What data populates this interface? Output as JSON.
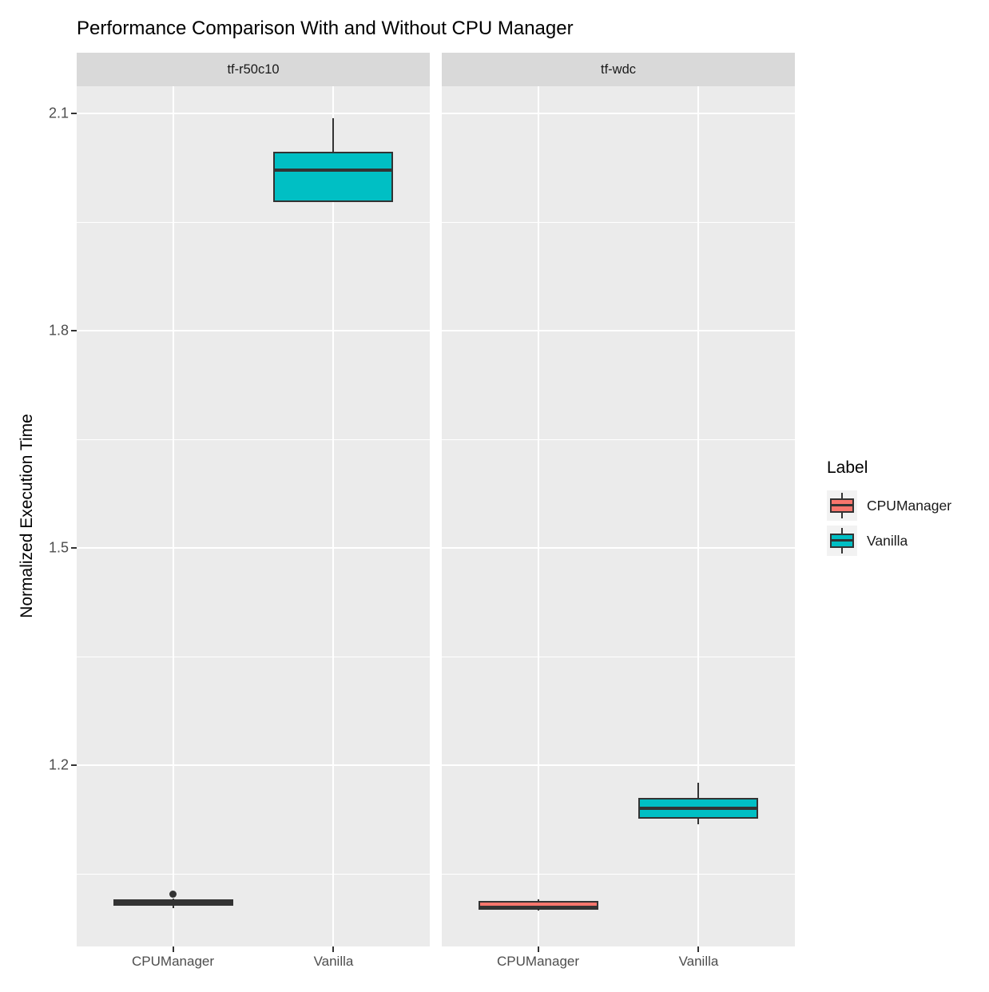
{
  "title": "Performance Comparison With and Without CPU Manager",
  "y_axis": {
    "label": "Normalized Execution Time",
    "ticks": [
      "2.1",
      "1.8",
      "1.5",
      "1.2"
    ],
    "tick_values": [
      2.1,
      1.8,
      1.5,
      1.2
    ]
  },
  "x_axis": {
    "categories": [
      "CPUManager",
      "Vanilla"
    ]
  },
  "legend": {
    "title": "Label",
    "entries": [
      {
        "label": "CPUManager",
        "color": "#F8766D"
      },
      {
        "label": "Vanilla",
        "color": "#00BFC4"
      }
    ]
  },
  "colors": {
    "panel_background": "#EBEBEB",
    "strip_background": "#D9D9D9",
    "gridline": "#FFFFFF",
    "box_border": "#333333",
    "axis_text": "#4D4D4D",
    "cpumanager_fill": "#F8766D",
    "vanilla_fill": "#00BFC4"
  },
  "chart_data": {
    "type": "boxplot",
    "title": "Performance Comparison With and Without CPU Manager",
    "xlabel": "",
    "ylabel": "Normalized Execution Time",
    "ylim": [
      0.95,
      2.14
    ],
    "y_major_ticks": [
      1.2,
      1.5,
      1.8,
      2.1
    ],
    "y_minor_gridlines": [
      1.05,
      1.35,
      1.65,
      1.95
    ],
    "categories": [
      "CPUManager",
      "Vanilla"
    ],
    "legend_title": "Label",
    "legend_position": "right",
    "grid": true,
    "facets": [
      {
        "name": "tf-r50c10",
        "boxes": [
          {
            "category": "CPUManager",
            "fill": "#F8766D",
            "whisker_low": 1.003,
            "q1": 1.006,
            "median": 1.01,
            "q3": 1.015,
            "whisker_high": 1.016,
            "outliers": [
              1.022
            ]
          },
          {
            "category": "Vanilla",
            "fill": "#00BFC4",
            "whisker_low": 1.978,
            "q1": 1.978,
            "median": 2.022,
            "q3": 2.047,
            "whisker_high": 2.093,
            "outliers": []
          }
        ]
      },
      {
        "name": "tf-wdc",
        "boxes": [
          {
            "category": "CPUManager",
            "fill": "#F8766D",
            "whisker_low": 0.999,
            "q1": 1.0,
            "median": 1.004,
            "q3": 1.013,
            "whisker_high": 1.015,
            "outliers": []
          },
          {
            "category": "Vanilla",
            "fill": "#00BFC4",
            "whisker_low": 1.118,
            "q1": 1.126,
            "median": 1.14,
            "q3": 1.155,
            "whisker_high": 1.176,
            "outliers": []
          }
        ]
      }
    ]
  }
}
